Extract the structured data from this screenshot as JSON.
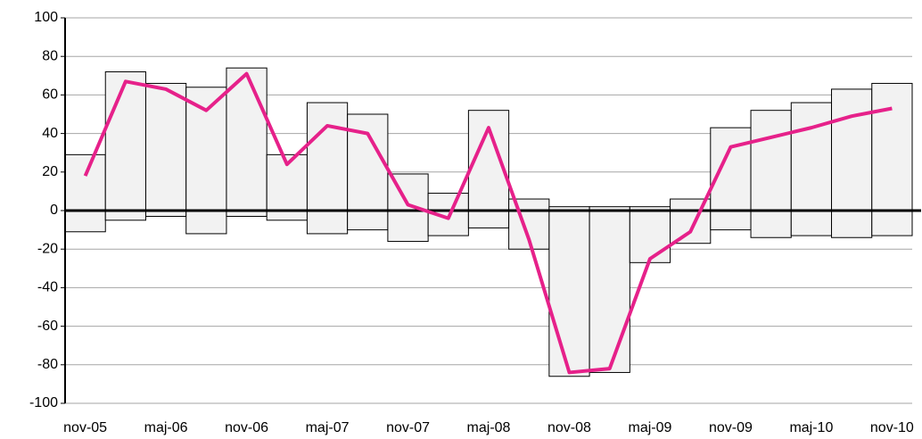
{
  "chart_data": {
    "type": "bar",
    "categories": [
      "nov-05",
      null,
      "maj-06",
      null,
      "nov-06",
      null,
      "maj-07",
      null,
      "nov-07",
      null,
      "maj-08",
      null,
      "nov-08",
      null,
      "maj-09",
      null,
      "nov-09",
      null,
      "maj-10",
      null,
      "nov-10"
    ],
    "series": [
      {
        "color": "#f2f2f2",
        "values": [
          29,
          72,
          66,
          64,
          74,
          29,
          56,
          50,
          19,
          9,
          52,
          6,
          2,
          2,
          2,
          6,
          43,
          52,
          56,
          63,
          66
        ]
      },
      {
        "color": "#f2f2f2",
        "values": [
          -11,
          -5,
          -3,
          -12,
          -3,
          -5,
          -12,
          -10,
          -16,
          -13,
          -9,
          -20,
          -86,
          -84,
          -27,
          -17,
          -10,
          -14,
          -13,
          -14,
          -13
        ]
      },
      {
        "type": "line",
        "color": "#e6218a",
        "values": [
          18,
          67,
          63,
          52,
          71,
          24,
          44,
          40,
          3,
          -4,
          43,
          -15,
          -84,
          -82,
          -25,
          -11,
          33,
          38,
          43,
          49,
          53
        ]
      }
    ],
    "ylim": [
      -100,
      100
    ],
    "yticks": [
      -100,
      -80,
      -60,
      -40,
      -20,
      0,
      20,
      40,
      60,
      80,
      100
    ],
    "grid": true
  }
}
